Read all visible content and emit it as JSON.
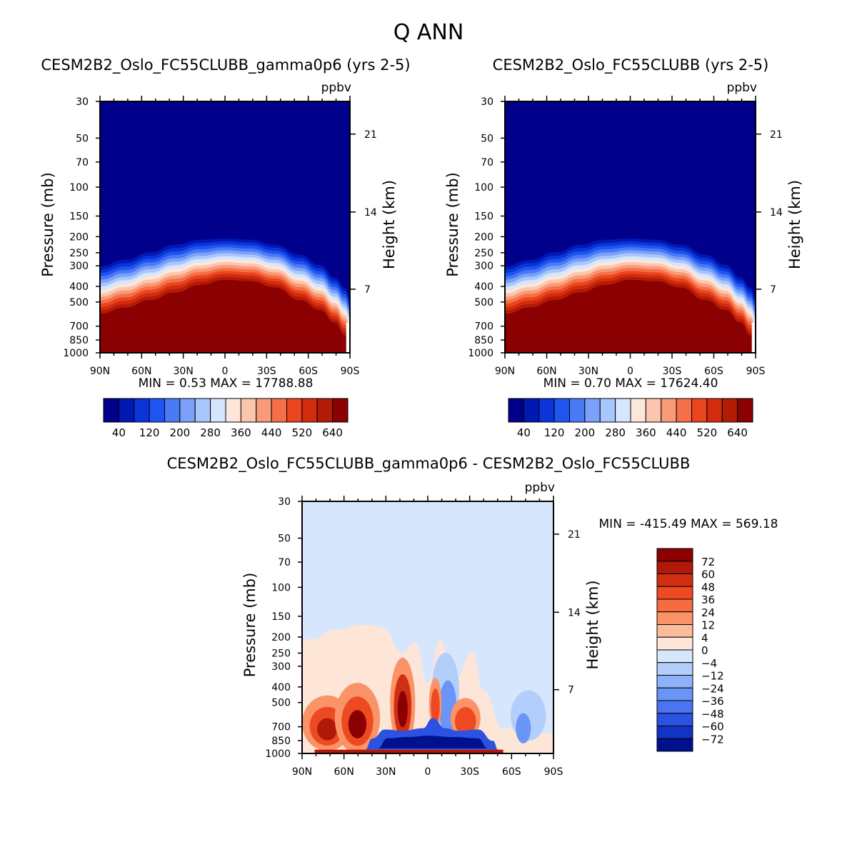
{
  "figure": {
    "title": "Q ANN"
  },
  "chart_data": [
    {
      "type": "heatmap",
      "title": "CESM2B2_Oslo_FC55CLUBB_gamma0p6 (yrs 2-5)",
      "units": "ppbv",
      "ylabel": "Pressure (mb)",
      "ylabel_right": "Height (km)",
      "x_ticks": [
        "90N",
        "60N",
        "30N",
        "0",
        "30S",
        "60S",
        "90S"
      ],
      "y_ticks": [
        30,
        50,
        70,
        100,
        150,
        200,
        250,
        300,
        400,
        500,
        700,
        850,
        1000
      ],
      "y_right_ticks": [
        21,
        14,
        7
      ],
      "ylim": [
        1000,
        30
      ],
      "stats": {
        "min_label": "MIN =",
        "min": "0.53",
        "max_label": "MAX =",
        "max": "17788.88"
      },
      "colorbar": {
        "levels": [
          40,
          120,
          200,
          280,
          360,
          440,
          520,
          640
        ],
        "colors": [
          "#00008B",
          "#0018B4",
          "#0A34D8",
          "#1E55F0",
          "#4A79F6",
          "#7BA1FA",
          "#A9C7FC",
          "#D6E6FD",
          "#FDE6DA",
          "#FCC5AE",
          "#F99B78",
          "#F57048",
          "#E9451F",
          "#D22B0E",
          "#B21B06",
          "#8B0000"
        ]
      }
    },
    {
      "type": "heatmap",
      "title": "CESM2B2_Oslo_FC55CLUBB (yrs 2-5)",
      "units": "ppbv",
      "ylabel": "Pressure (mb)",
      "ylabel_right": "Height (km)",
      "x_ticks": [
        "90N",
        "60N",
        "30N",
        "0",
        "30S",
        "60S",
        "90S"
      ],
      "y_ticks": [
        30,
        50,
        70,
        100,
        150,
        200,
        250,
        300,
        400,
        500,
        700,
        850,
        1000
      ],
      "y_right_ticks": [
        21,
        14,
        7
      ],
      "ylim": [
        1000,
        30
      ],
      "stats": {
        "min_label": "MIN =",
        "min": "0.70",
        "max_label": "MAX =",
        "max": "17624.40"
      },
      "colorbar": {
        "levels": [
          40,
          120,
          200,
          280,
          360,
          440,
          520,
          640
        ],
        "colors": [
          "#00008B",
          "#0018B4",
          "#0A34D8",
          "#1E55F0",
          "#4A79F6",
          "#7BA1FA",
          "#A9C7FC",
          "#D6E6FD",
          "#FDE6DA",
          "#FCC5AE",
          "#F99B78",
          "#F57048",
          "#E9451F",
          "#D22B0E",
          "#B21B06",
          "#8B0000"
        ]
      }
    },
    {
      "type": "heatmap",
      "title": "CESM2B2_Oslo_FC55CLUBB_gamma0p6 - CESM2B2_Oslo_FC55CLUBB",
      "units": "ppbv",
      "ylabel": "Pressure (mb)",
      "ylabel_right": "Height (km)",
      "x_ticks": [
        "90N",
        "60N",
        "30N",
        "0",
        "30S",
        "60S",
        "90S"
      ],
      "y_ticks": [
        30,
        50,
        70,
        100,
        150,
        200,
        250,
        300,
        400,
        500,
        700,
        850,
        1000
      ],
      "y_right_ticks": [
        21,
        14,
        7
      ],
      "ylim": [
        1000,
        30
      ],
      "stats": {
        "min_label": "MIN =",
        "min": "-415.49",
        "max_label": "MAX =",
        "max": "569.18"
      },
      "colorbar": {
        "levels": [
          72,
          60,
          48,
          36,
          24,
          12,
          4,
          0,
          -4,
          -12,
          -24,
          -36,
          -48,
          -60,
          -72
        ],
        "colors": [
          "#8B0000",
          "#B0180A",
          "#D02F14",
          "#EE4A22",
          "#F66C3F",
          "#FA9468",
          "#FCBC9C",
          "#FDE6D8",
          "#D6E6FD",
          "#B4CEFB",
          "#8EB2F9",
          "#6A94F6",
          "#4A74F2",
          "#2B52E0",
          "#1234C2",
          "#00108E"
        ]
      }
    }
  ]
}
